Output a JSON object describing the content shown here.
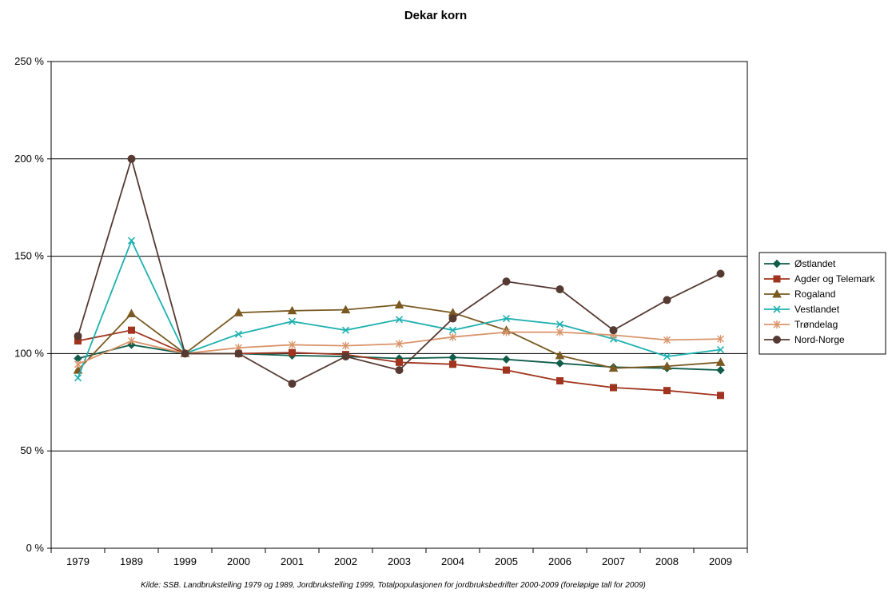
{
  "chart_data": {
    "type": "line",
    "title": "Dekar korn",
    "categories": [
      "1979",
      "1989",
      "1999",
      "2000",
      "2001",
      "2002",
      "2003",
      "2004",
      "2005",
      "2006",
      "2007",
      "2008",
      "2009"
    ],
    "y_tick_labels": [
      "0 %",
      "50 %",
      "100 %",
      "150 %",
      "200 %",
      "250 %"
    ],
    "ylim": [
      0,
      250
    ],
    "ylabel": "",
    "xlabel": "",
    "grid": true,
    "legend_position": "right",
    "source_note": "Kilde: SSB. Landbrukstelling 1979 og 1989, Jordbrukstelling 1999, Totalpopulasjonen for jordbruksbedrifter 2000-2009 (foreløpige tall for 2009)",
    "series": [
      {
        "name": "Østlandet",
        "color": "#0f5d4a",
        "marker": "diamond",
        "values": [
          97.5,
          104.5,
          100,
          100,
          99,
          98.5,
          97.5,
          98,
          97,
          95,
          93,
          92.5,
          91.5
        ]
      },
      {
        "name": "Agder og Telemark",
        "color": "#a0341e",
        "marker": "square",
        "values": [
          106.5,
          112,
          100,
          100,
          100.5,
          99.5,
          95.5,
          94.5,
          91.5,
          86,
          82.5,
          81,
          78.5
        ]
      },
      {
        "name": "Rogaland",
        "color": "#7a5a22",
        "marker": "triangle",
        "values": [
          91.5,
          120.5,
          100,
          121,
          122,
          122.5,
          125,
          121,
          112,
          99,
          92.5,
          93.5,
          95.5
        ]
      },
      {
        "name": "Vestlandet",
        "color": "#1eb0b0",
        "marker": "x",
        "values": [
          87.5,
          158,
          100,
          110,
          116.5,
          112,
          117.5,
          112,
          118,
          115,
          107.5,
          98.5,
          102
        ]
      },
      {
        "name": "Trøndelag",
        "color": "#d9946a",
        "marker": "asterisk",
        "values": [
          94.5,
          106.5,
          100,
          103,
          104.5,
          104,
          105,
          108.5,
          111,
          111,
          109.5,
          107,
          107.5
        ]
      },
      {
        "name": "Nord-Norge",
        "color": "#553a32",
        "marker": "circle",
        "values": [
          109,
          200,
          100,
          100,
          84.5,
          98.5,
          91.5,
          118,
          137,
          133,
          112,
          127.5,
          141
        ]
      }
    ]
  }
}
